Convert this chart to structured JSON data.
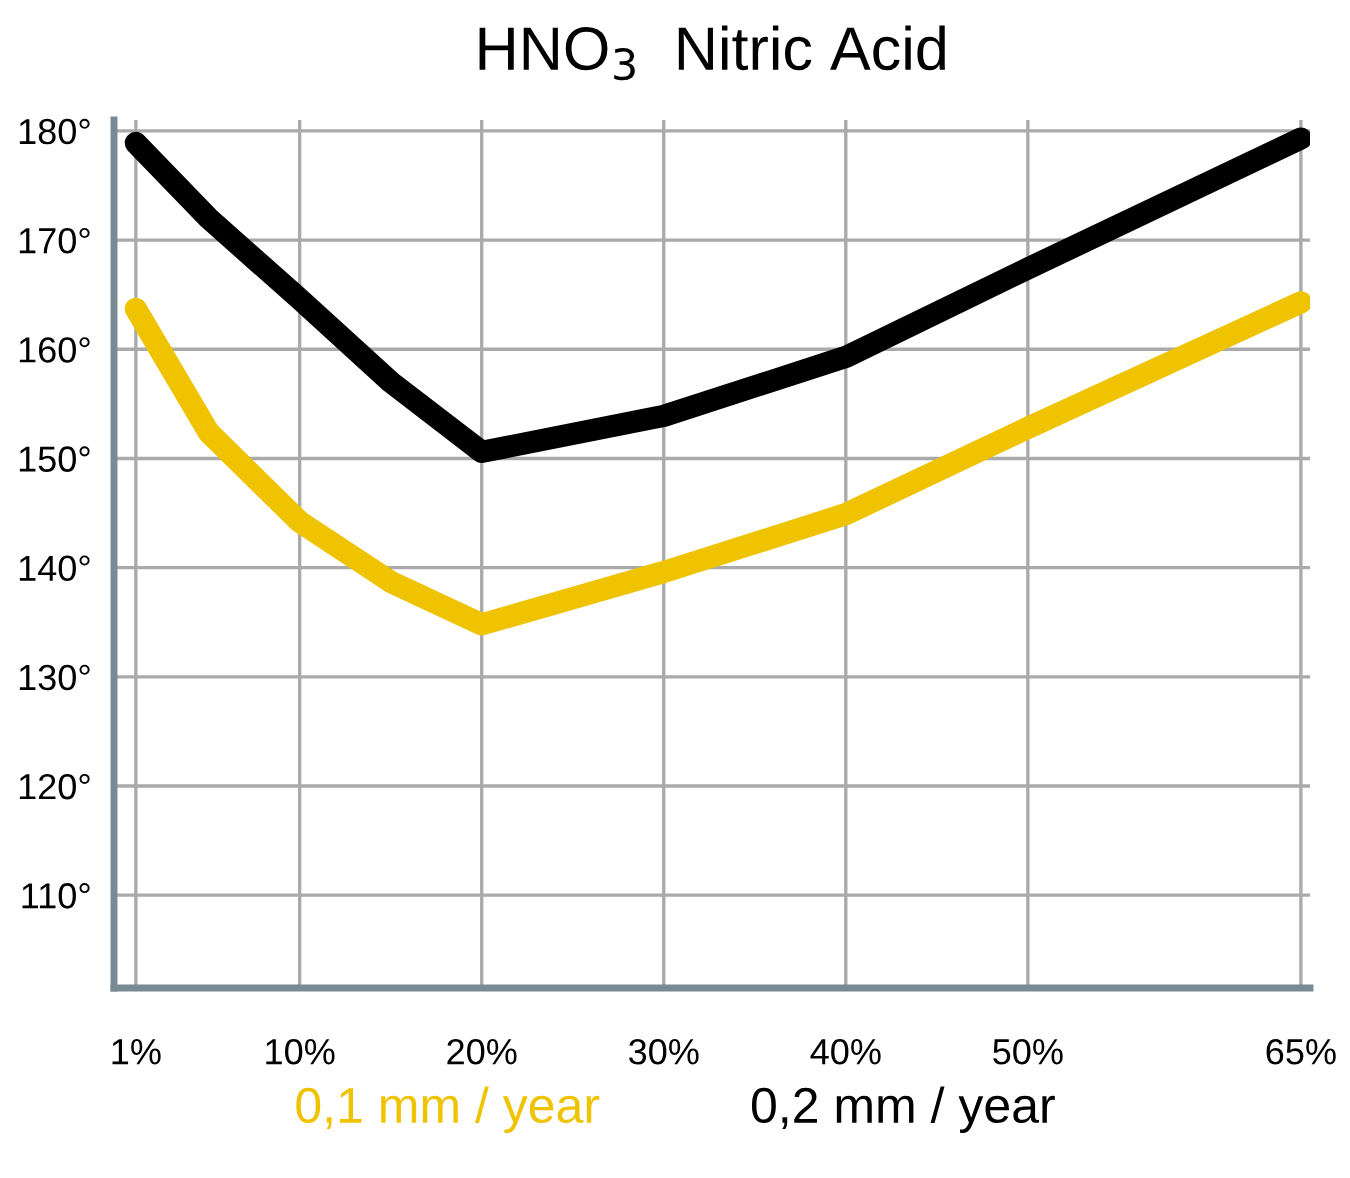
{
  "chart_data": {
    "type": "line",
    "title": "HNO$_{3}$  Nitric Acid",
    "x": [
      1,
      5,
      10,
      15,
      20,
      30,
      40,
      50,
      65
    ],
    "series": [
      {
        "name": "0,1 mm / year",
        "color": "#efc300",
        "values": [
          163.7,
          152.4,
          144.2,
          138.7,
          134.8,
          139.6,
          144.9,
          152.8,
          164.3
        ]
      },
      {
        "name": "0,2 mm / year",
        "color": "#000000",
        "values": [
          178.9,
          172,
          164.6,
          157,
          150.6,
          153.9,
          159.3,
          167.4,
          179.3
        ]
      }
    ],
    "xlim": [
      -0.2,
      65.5
    ],
    "ylim": [
      101.5,
      181
    ],
    "xticks": [
      {
        "value": 1,
        "label": "1%"
      },
      {
        "value": 10,
        "label": "10%"
      },
      {
        "value": 20,
        "label": "20%"
      },
      {
        "value": 30,
        "label": "30%"
      },
      {
        "value": 40,
        "label": "40%"
      },
      {
        "value": 50,
        "label": "50%"
      },
      {
        "value": 65,
        "label": "65%"
      }
    ],
    "yticks": [
      {
        "value": 110,
        "label": "110°"
      },
      {
        "value": 120,
        "label": "120°"
      },
      {
        "value": 130,
        "label": "130°"
      },
      {
        "value": 140,
        "label": "140°"
      },
      {
        "value": 150,
        "label": "150°"
      },
      {
        "value": 160,
        "label": "160°"
      },
      {
        "value": 170,
        "label": "170°"
      },
      {
        "value": 180,
        "label": "180°"
      }
    ],
    "grid": true,
    "legend": "bottom",
    "line_style": "solid"
  }
}
